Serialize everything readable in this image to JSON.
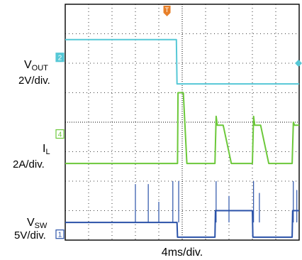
{
  "chart_data": {
    "type": "line",
    "title": "",
    "xlabel": "4ms/div.",
    "time_per_div_ms": 4,
    "divisions": {
      "x": 10,
      "y": 8
    },
    "grid": true,
    "trigger_marker": "T",
    "series": [
      {
        "name": "V_OUT",
        "label_main": "V",
        "label_sub": "OUT",
        "scale": "2V/div.",
        "channel": "2",
        "color": "#56c8d6",
        "note": "",
        "points_div": [
          [
            0,
            6.8
          ],
          [
            4.75,
            6.8
          ],
          [
            4.78,
            5.3
          ],
          [
            10,
            5.3
          ]
        ]
      },
      {
        "name": "I_L",
        "label_main": "I",
        "label_sub": "L",
        "scale": "2A/div.",
        "channel": "4",
        "color": "#6cc83a",
        "points_div": [
          [
            0,
            2.6
          ],
          [
            4.8,
            2.6
          ],
          [
            4.82,
            5.0
          ],
          [
            5.05,
            5.0
          ],
          [
            5.2,
            2.6
          ],
          [
            6.4,
            2.6
          ],
          [
            6.45,
            4.2
          ],
          [
            6.5,
            3.9
          ],
          [
            6.75,
            3.9
          ],
          [
            7.1,
            2.6
          ],
          [
            8.0,
            2.6
          ],
          [
            8.05,
            4.2
          ],
          [
            8.1,
            3.9
          ],
          [
            8.35,
            3.9
          ],
          [
            8.7,
            2.6
          ],
          [
            9.7,
            2.6
          ],
          [
            9.75,
            4.0
          ],
          [
            9.8,
            3.9
          ],
          [
            10,
            3.9
          ]
        ]
      },
      {
        "name": "V_SW",
        "label_main": "V",
        "label_sub": "SW",
        "scale": "5V/div.",
        "channel": "1",
        "color": "#2a52a8",
        "points_div": [
          [
            0,
            0.6
          ],
          [
            4.78,
            0.6
          ],
          [
            4.8,
            0.1
          ],
          [
            6.4,
            0.1
          ],
          [
            6.42,
            1.0
          ],
          [
            8.0,
            1.0
          ],
          [
            8.02,
            0.1
          ],
          [
            9.7,
            0.1
          ],
          [
            9.72,
            1.0
          ],
          [
            10,
            1.0
          ]
        ],
        "spikes_div": [
          [
            3.0,
            1.9
          ],
          [
            3.55,
            1.9
          ],
          [
            4.0,
            1.3
          ],
          [
            4.6,
            2.0
          ],
          [
            4.85,
            2.0
          ],
          [
            6.45,
            2.0
          ],
          [
            7.0,
            1.5
          ],
          [
            8.05,
            2.0
          ],
          [
            8.3,
            1.6
          ],
          [
            9.75,
            2.0
          ],
          [
            9.9,
            1.7
          ]
        ]
      }
    ]
  }
}
